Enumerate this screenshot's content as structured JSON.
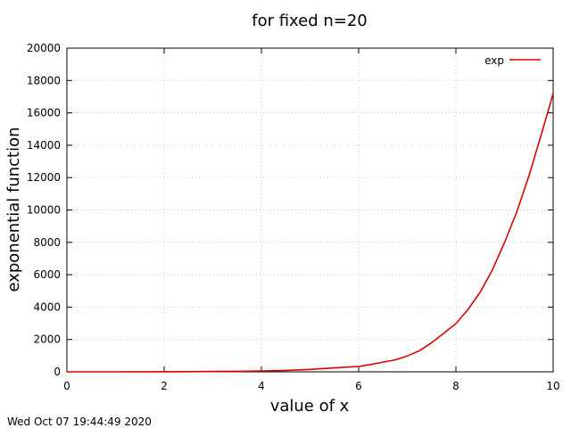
{
  "chart_data": {
    "type": "line",
    "title": "for fixed n=20",
    "xlabel": "value of x",
    "ylabel": "exponential function",
    "xlim": [
      0,
      10
    ],
    "ylim": [
      0,
      20000
    ],
    "xticks": [
      "0",
      "2",
      "4",
      "6",
      "8",
      "10"
    ],
    "yticks": [
      "0",
      "2000",
      "4000",
      "6000",
      "8000",
      "10000",
      "12000",
      "14000",
      "16000",
      "18000",
      "20000"
    ],
    "grid": true,
    "legend_position": "top-right",
    "series": [
      {
        "name": "exp",
        "color": "#dd0000",
        "x": [
          0,
          0.5,
          1,
          1.5,
          2,
          2.5,
          3,
          3.5,
          4,
          4.5,
          5,
          5.5,
          6,
          6.25,
          6.5,
          6.75,
          7,
          7.25,
          7.5,
          7.75,
          8,
          8.25,
          8.5,
          8.75,
          9,
          9.25,
          9.5,
          9.75,
          10
        ],
        "y": [
          1,
          1.6,
          2.7,
          4.5,
          7.4,
          12,
          20,
          33,
          55,
          90,
          148,
          245,
          330,
          450,
          600,
          740,
          980,
          1300,
          1800,
          2380,
          2980,
          3850,
          4930,
          6300,
          7990,
          9860,
          12100,
          14600,
          17200
        ]
      }
    ]
  },
  "footer": {
    "timestamp": "Wed Oct 07 19:44:49 2020"
  }
}
